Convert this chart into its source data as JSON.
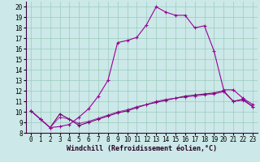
{
  "xlabel": "Windchill (Refroidissement éolien,°C)",
  "background_color": "#cce8e8",
  "grid_color": "#99ccbb",
  "line_color1": "#990099",
  "line_color2": "#660066",
  "xlim": [
    -0.5,
    23.5
  ],
  "ylim": [
    8,
    20.5
  ],
  "xticks": [
    0,
    1,
    2,
    3,
    4,
    5,
    6,
    7,
    8,
    9,
    10,
    11,
    12,
    13,
    14,
    15,
    16,
    17,
    18,
    19,
    20,
    21,
    22,
    23
  ],
  "yticks": [
    8,
    9,
    10,
    11,
    12,
    13,
    14,
    15,
    16,
    17,
    18,
    19,
    20
  ],
  "series1_x": [
    0,
    1,
    2,
    3,
    4,
    5,
    6,
    7,
    8,
    9,
    10,
    11,
    12,
    13,
    14,
    15,
    16,
    17,
    18,
    19,
    20,
    21,
    22,
    23
  ],
  "series1_y": [
    10.1,
    9.3,
    8.5,
    8.6,
    8.8,
    9.5,
    10.3,
    11.5,
    13.0,
    16.6,
    16.8,
    17.1,
    18.3,
    20.0,
    19.5,
    19.2,
    19.2,
    18.0,
    18.2,
    15.8,
    12.1,
    12.1,
    11.3,
    10.7
  ],
  "series2_x": [
    0,
    1,
    2,
    3,
    4,
    5,
    6,
    7,
    8,
    9,
    10,
    11,
    12,
    13,
    14,
    15,
    16,
    17,
    18,
    19,
    20,
    21,
    22,
    23
  ],
  "series2_y": [
    10.1,
    9.3,
    8.5,
    9.8,
    9.3,
    8.7,
    9.0,
    9.3,
    9.6,
    9.9,
    10.1,
    10.4,
    10.7,
    10.9,
    11.1,
    11.3,
    11.5,
    11.6,
    11.7,
    11.8,
    12.0,
    11.0,
    11.2,
    10.5
  ],
  "series3_x": [
    0,
    1,
    2,
    3,
    4,
    5,
    6,
    7,
    8,
    9,
    10,
    11,
    12,
    13,
    14,
    15,
    16,
    17,
    18,
    19,
    20,
    21,
    22,
    23
  ],
  "series3_y": [
    10.1,
    9.3,
    8.5,
    9.5,
    9.3,
    8.9,
    9.1,
    9.4,
    9.7,
    10.0,
    10.2,
    10.5,
    10.7,
    11.0,
    11.2,
    11.3,
    11.4,
    11.5,
    11.6,
    11.7,
    11.9,
    11.0,
    11.1,
    10.5
  ],
  "markersize": 3,
  "linewidth": 0.8,
  "fontsize_label": 6,
  "fontsize_tick": 5.5
}
